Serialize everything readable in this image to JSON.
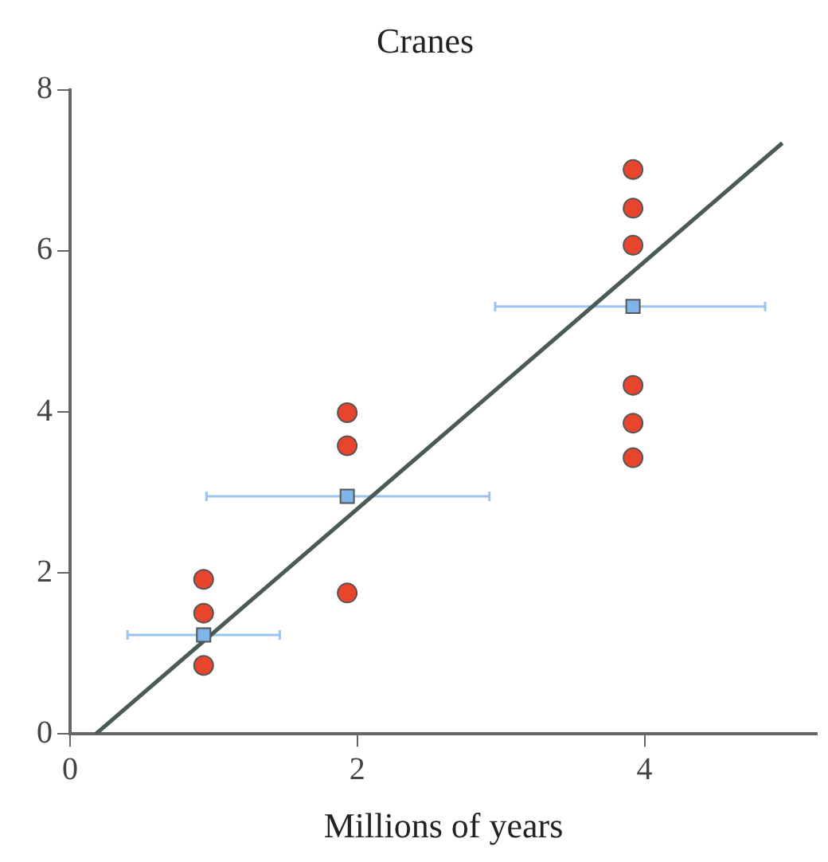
{
  "chart_data": {
    "type": "scatter",
    "title": "Cranes",
    "xlabel": "Millions of years",
    "xlim": [
      0,
      5.2
    ],
    "xticks": [
      0,
      2,
      4
    ],
    "ylim": [
      0,
      8
    ],
    "yticks": [
      0,
      2,
      4,
      6,
      8
    ],
    "grid": false,
    "legend": false,
    "series": [
      {
        "type": "scatter",
        "marker": "circle",
        "color": "#e8452c",
        "x": [
          0.93,
          0.93,
          0.93,
          1.93,
          1.93,
          1.93,
          3.92,
          3.92,
          3.92,
          3.92,
          3.92,
          3.92
        ],
        "values": [
          1.92,
          1.5,
          0.85,
          3.99,
          3.58,
          1.75,
          7.01,
          6.53,
          6.07,
          4.33,
          3.86,
          3.43
        ]
      },
      {
        "type": "scatter",
        "marker": "square",
        "color": "#7fb5e8",
        "x": [
          0.93,
          1.93,
          3.92
        ],
        "values": [
          1.23,
          2.95,
          5.31
        ],
        "xerrors": [
          [
            0.4,
            1.46
          ],
          [
            0.95,
            2.92
          ],
          [
            2.96,
            4.84
          ]
        ]
      },
      {
        "type": "line",
        "marker": "none",
        "color": "#4a5a55",
        "x": [
          0.18,
          4.96
        ],
        "values": [
          0,
          7.34
        ]
      }
    ]
  }
}
